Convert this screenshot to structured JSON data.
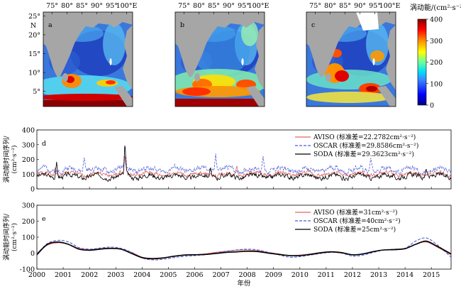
{
  "maps": {
    "lon_ticks": [
      "75°",
      "80°",
      "85°",
      "90°",
      "95°",
      "100°E"
    ],
    "lat_ticks": [
      "25°",
      "20°",
      "15°",
      "10°",
      "5°"
    ],
    "north_label": "N",
    "panels": [
      {
        "label": "a"
      },
      {
        "label": "b"
      },
      {
        "label": "c"
      }
    ],
    "colorbar": {
      "title": "涡动能/(cm²·s⁻²)",
      "ticks": [
        "400",
        "300",
        "200",
        "100",
        "0"
      ],
      "range": [
        0,
        400
      ]
    },
    "land_color": "#a6a6a6"
  },
  "chart_data": [
    {
      "type": "line",
      "panel": "d",
      "ylabel": "涡动能时间序列/(cm²·s⁻²)",
      "ylabel_line1": "涡动能时间序列/",
      "ylabel_line2": "(cm²·s⁻²)",
      "ylim": [
        0,
        400
      ],
      "yticks": [
        "0",
        "100",
        "200",
        "300",
        "400"
      ],
      "xlim": [
        2000,
        2015.75
      ],
      "xticks": [
        "2000",
        "2001",
        "2002",
        "2003",
        "2004",
        "2005",
        "2006",
        "2007",
        "2008",
        "2009",
        "2010",
        "2011",
        "2012",
        "2013",
        "2014",
        "2015"
      ],
      "legend_position": "top-right",
      "series": [
        {
          "name": "AVISO (标准差=22.2782cm²·s⁻²)",
          "color": "#e06666",
          "style": "solid",
          "mean": 100,
          "amp": 30,
          "seed": 1,
          "values_desc": "approximate; noisy weekly series",
          "peaks": [
            [
              2000.7,
              150
            ],
            [
              2003.35,
              240
            ],
            [
              2007.6,
              160
            ]
          ]
        },
        {
          "name": "OSCAR (标准差=29.8586cm²·s⁻²)",
          "color": "#4a5ad6",
          "style": "dashed",
          "mean": 130,
          "amp": 40,
          "seed": 2,
          "peaks": [
            [
              2001.8,
              220
            ],
            [
              2003.35,
              300
            ],
            [
              2006.8,
              240
            ],
            [
              2008.6,
              230
            ],
            [
              2012.7,
              215
            ]
          ]
        },
        {
          "name": "SODA (标准差=29.3623cm²·s⁻²)",
          "color": "#000000",
          "style": "solid",
          "mean": 85,
          "amp": 35,
          "seed": 3,
          "peaks": [
            [
              2000.75,
              185
            ],
            [
              2003.35,
              325
            ],
            [
              2006.6,
              150
            ],
            [
              2014.8,
              140
            ]
          ]
        }
      ]
    },
    {
      "type": "line",
      "panel": "e",
      "ylabel": "涡动能时间序列/(cm²·s⁻²)",
      "ylabel_line1": "涡动能时间序列/",
      "ylabel_line2": "(cm²·s⁻²)",
      "ylim": [
        -100,
        300
      ],
      "yticks": [
        "-100",
        "0",
        "100",
        "200",
        "300"
      ],
      "xlim": [
        2000,
        2015.75
      ],
      "xticks": [
        "2000",
        "2001",
        "2002",
        "2003",
        "2004",
        "2005",
        "2006",
        "2007",
        "2008",
        "2009",
        "2010",
        "2011",
        "2012",
        "2013",
        "2014",
        "2015"
      ],
      "xlabel": "年份",
      "legend_position": "top-right",
      "x": [
        2000.0,
        2000.4,
        2000.8,
        2001.2,
        2001.6,
        2002.0,
        2002.4,
        2002.8,
        2003.2,
        2003.6,
        2004.0,
        2004.4,
        2004.8,
        2005.2,
        2005.6,
        2006.0,
        2006.4,
        2006.8,
        2007.2,
        2007.6,
        2008.0,
        2008.4,
        2008.8,
        2009.2,
        2009.6,
        2010.0,
        2010.4,
        2010.8,
        2011.2,
        2011.6,
        2012.0,
        2012.4,
        2012.8,
        2013.2,
        2013.6,
        2014.0,
        2014.4,
        2014.8,
        2015.2,
        2015.75
      ],
      "series": [
        {
          "name": "AVISO (标准差=31cm²·s⁻²)",
          "color": "#e06666",
          "style": "solid",
          "values": [
            0,
            50,
            65,
            55,
            30,
            22,
            28,
            32,
            25,
            5,
            -25,
            -32,
            -28,
            -18,
            -12,
            -10,
            -5,
            5,
            12,
            18,
            20,
            15,
            5,
            -5,
            -15,
            -12,
            -5,
            5,
            10,
            5,
            -10,
            -5,
            10,
            20,
            25,
            30,
            55,
            70,
            40,
            -10
          ]
        },
        {
          "name": "OSCAR (标准差=40cm²·s⁻²)",
          "color": "#4a5ad6",
          "style": "dashed",
          "values": [
            -5,
            60,
            80,
            70,
            35,
            25,
            32,
            38,
            30,
            5,
            -30,
            -42,
            -38,
            -28,
            -20,
            -15,
            -10,
            0,
            12,
            20,
            25,
            20,
            5,
            -10,
            -25,
            -22,
            -12,
            -2,
            5,
            0,
            -18,
            -12,
            5,
            20,
            25,
            30,
            75,
            95,
            55,
            -25
          ]
        },
        {
          "name": "SODA (标准差=25cm²·s⁻²)",
          "color": "#000000",
          "style": "solid",
          "values": [
            -10,
            55,
            70,
            55,
            25,
            18,
            25,
            30,
            25,
            -2,
            -28,
            -35,
            -30,
            -20,
            -12,
            -10,
            -8,
            -2,
            5,
            8,
            12,
            10,
            0,
            -8,
            -15,
            -15,
            -8,
            2,
            8,
            2,
            -10,
            -5,
            10,
            20,
            22,
            28,
            55,
            75,
            45,
            -5
          ]
        }
      ]
    }
  ]
}
